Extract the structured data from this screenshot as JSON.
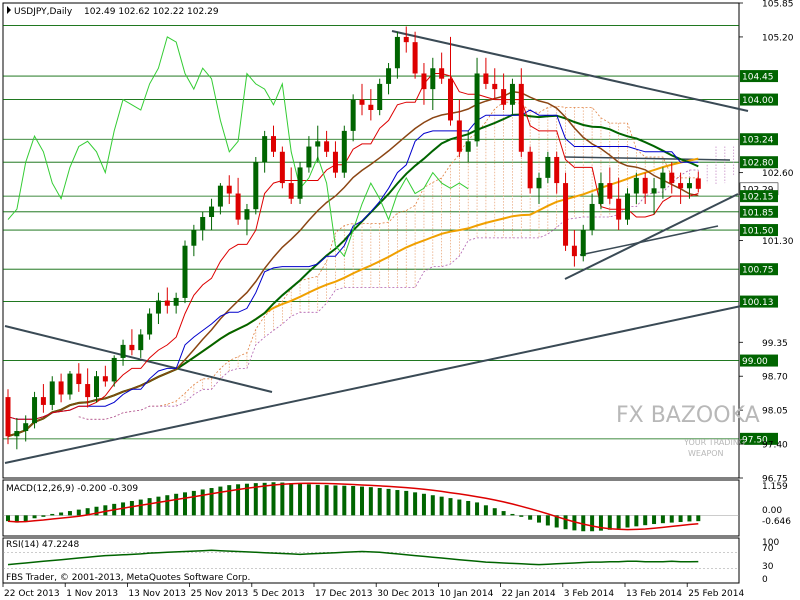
{
  "header": {
    "symbol": "USDJPY,Daily",
    "ohlc": "102.49 102.62 102.22 102.29"
  },
  "macd": {
    "label": "MACD(12,26,9) -0.200 -0.309",
    "scale": [
      "1.159",
      "0.00",
      "-0.646"
    ]
  },
  "rsi": {
    "label": "RSI(14) 47.2248",
    "scale": [
      "100",
      "70",
      "30",
      "0"
    ]
  },
  "copyright": "FBS Trader, © 2001-2013, MetaQuotes Software Corp.",
  "watermark": {
    "brand": "FX BAZOOKA",
    "tagline1": "YOUR TRADING",
    "tagline2": "WEAPON"
  },
  "colors": {
    "bull": "#006400",
    "bear": "#dd0000",
    "ma_long": "#f0a000",
    "ma_mid": "#006400",
    "ma_brown": "#8b4513",
    "tenkan": "#dd0000",
    "kijun": "#0000cc",
    "chikou": "#33cc33",
    "hlabel_bg": "#006400",
    "trend": "#3a4a55"
  },
  "chart_data": [
    {
      "type": "candlestick",
      "title": "USDJPY,Daily",
      "ylim": [
        96.75,
        105.85
      ],
      "y_ticks": [
        105.85,
        105.2,
        104.45,
        104.0,
        103.24,
        102.8,
        102.6,
        102.29,
        102.15,
        101.85,
        101.5,
        101.3,
        100.75,
        100.13,
        99.35,
        99.0,
        98.7,
        98.05,
        97.5,
        97.4,
        96.75
      ],
      "x_labels": [
        "22 Oct 2013",
        "1 Nov 2013",
        "13 Nov 2013",
        "25 Nov 2013",
        "5 Dec 2013",
        "17 Dec 2013",
        "30 Dec 2013",
        "10 Jan 2014",
        "22 Jan 2014",
        "3 Feb 2014",
        "13 Feb 2014",
        "25 Feb 2014"
      ],
      "horizontal_levels": [
        105.42,
        104.45,
        104.0,
        103.24,
        102.8,
        102.15,
        101.85,
        101.5,
        100.75,
        100.13,
        99.0,
        97.5
      ],
      "current_price": 102.29,
      "ohlc": [
        [
          98.3,
          98.45,
          97.4,
          97.55
        ],
        [
          97.55,
          97.9,
          97.3,
          97.65
        ],
        [
          97.65,
          97.95,
          97.45,
          97.8
        ],
        [
          97.8,
          98.4,
          97.7,
          98.3
        ],
        [
          98.3,
          98.55,
          98.0,
          98.15
        ],
        [
          98.15,
          98.7,
          98.05,
          98.6
        ],
        [
          98.6,
          98.75,
          98.2,
          98.35
        ],
        [
          98.35,
          98.8,
          98.25,
          98.75
        ],
        [
          98.75,
          98.95,
          98.4,
          98.55
        ],
        [
          98.55,
          98.85,
          98.1,
          98.3
        ],
        [
          98.3,
          98.8,
          98.2,
          98.7
        ],
        [
          98.7,
          98.9,
          98.5,
          98.6
        ],
        [
          98.6,
          99.1,
          98.5,
          99.05
        ],
        [
          99.05,
          99.4,
          98.9,
          99.3
        ],
        [
          99.3,
          99.6,
          99.1,
          99.2
        ],
        [
          99.2,
          99.6,
          99.05,
          99.5
        ],
        [
          99.5,
          100.0,
          99.4,
          99.9
        ],
        [
          99.9,
          100.3,
          99.7,
          100.15
        ],
        [
          100.15,
          100.4,
          99.9,
          100.05
        ],
        [
          100.05,
          100.3,
          99.9,
          100.2
        ],
        [
          100.2,
          101.3,
          100.1,
          101.2
        ],
        [
          101.2,
          101.6,
          101.0,
          101.5
        ],
        [
          101.5,
          101.85,
          101.3,
          101.75
        ],
        [
          101.75,
          102.1,
          101.5,
          101.95
        ],
        [
          101.95,
          102.4,
          101.8,
          102.35
        ],
        [
          102.35,
          102.55,
          102.0,
          102.2
        ],
        [
          102.2,
          102.5,
          101.6,
          101.7
        ],
        [
          101.7,
          102.0,
          101.4,
          101.9
        ],
        [
          101.9,
          102.9,
          101.8,
          102.8
        ],
        [
          102.8,
          103.4,
          102.6,
          103.3
        ],
        [
          103.3,
          103.5,
          102.9,
          103.0
        ],
        [
          103.0,
          103.1,
          102.3,
          102.4
        ],
        [
          102.4,
          102.7,
          102.0,
          102.1
        ],
        [
          102.1,
          102.8,
          102.0,
          102.7
        ],
        [
          102.7,
          103.3,
          102.6,
          103.1
        ],
        [
          103.1,
          103.5,
          102.8,
          103.2
        ],
        [
          103.2,
          103.4,
          102.9,
          103.0
        ],
        [
          103.0,
          103.2,
          102.5,
          102.6
        ],
        [
          102.6,
          103.5,
          102.5,
          103.4
        ],
        [
          103.4,
          104.1,
          103.2,
          104.0
        ],
        [
          104.0,
          104.3,
          103.7,
          103.9
        ],
        [
          103.9,
          104.2,
          103.6,
          103.8
        ],
        [
          103.8,
          104.4,
          103.7,
          104.3
        ],
        [
          104.3,
          104.7,
          104.1,
          104.6
        ],
        [
          104.6,
          105.3,
          104.4,
          105.2
        ],
        [
          105.2,
          105.4,
          104.9,
          105.1
        ],
        [
          105.1,
          105.3,
          104.4,
          104.5
        ],
        [
          104.5,
          104.7,
          103.9,
          104.2
        ],
        [
          104.2,
          104.8,
          103.8,
          104.6
        ],
        [
          104.6,
          104.9,
          104.3,
          104.4
        ],
        [
          104.4,
          105.2,
          103.5,
          103.6
        ],
        [
          103.6,
          104.0,
          102.9,
          103.0
        ],
        [
          103.0,
          103.4,
          102.8,
          103.2
        ],
        [
          103.2,
          104.8,
          103.1,
          104.5
        ],
        [
          104.5,
          104.8,
          104.2,
          104.3
        ],
        [
          104.3,
          104.6,
          104.0,
          104.2
        ],
        [
          104.2,
          104.5,
          103.8,
          103.9
        ],
        [
          103.9,
          104.4,
          103.7,
          104.3
        ],
        [
          104.3,
          104.6,
          102.9,
          103.0
        ],
        [
          103.0,
          103.1,
          102.2,
          102.3
        ],
        [
          102.3,
          102.6,
          102.0,
          102.5
        ],
        [
          102.5,
          103.0,
          102.4,
          102.9
        ],
        [
          102.9,
          103.0,
          102.2,
          102.4
        ],
        [
          102.4,
          102.6,
          101.1,
          101.2
        ],
        [
          101.2,
          101.5,
          100.8,
          101.0
        ],
        [
          101.0,
          101.6,
          100.9,
          101.5
        ],
        [
          101.5,
          102.2,
          101.4,
          102.0
        ],
        [
          102.0,
          102.6,
          101.9,
          102.4
        ],
        [
          102.4,
          102.7,
          102.0,
          102.1
        ],
        [
          102.1,
          102.5,
          101.5,
          101.7
        ],
        [
          101.7,
          102.3,
          101.6,
          102.2
        ],
        [
          102.2,
          102.6,
          102.0,
          102.5
        ],
        [
          102.5,
          102.6,
          102.0,
          102.2
        ],
        [
          102.2,
          102.5,
          101.8,
          102.3
        ],
        [
          102.3,
          102.7,
          102.1,
          102.6
        ],
        [
          102.6,
          102.8,
          102.2,
          102.4
        ],
        [
          102.4,
          102.6,
          102.0,
          102.3
        ],
        [
          102.3,
          102.5,
          102.1,
          102.4
        ],
        [
          102.49,
          102.62,
          102.22,
          102.29
        ]
      ]
    },
    {
      "type": "bar",
      "title": "MACD(12,26,9) -0.200 -0.309",
      "ylim": [
        -0.646,
        1.159
      ],
      "values": [
        -0.2,
        -0.25,
        -0.2,
        -0.1,
        -0.05,
        0.05,
        0.1,
        0.15,
        0.2,
        0.25,
        0.3,
        0.35,
        0.4,
        0.45,
        0.5,
        0.55,
        0.6,
        0.65,
        0.7,
        0.75,
        0.8,
        0.85,
        0.9,
        0.95,
        1.0,
        1.05,
        1.08,
        1.1,
        1.12,
        1.13,
        1.15,
        1.14,
        1.12,
        1.1,
        1.08,
        1.06,
        1.05,
        1.04,
        1.03,
        1.02,
        1.0,
        0.98,
        0.95,
        0.92,
        0.88,
        0.85,
        0.8,
        0.75,
        0.7,
        0.65,
        0.6,
        0.55,
        0.5,
        0.45,
        0.35,
        0.25,
        0.15,
        0.05,
        -0.05,
        -0.15,
        -0.25,
        -0.35,
        -0.42,
        -0.48,
        -0.52,
        -0.55,
        -0.55,
        -0.53,
        -0.5,
        -0.46,
        -0.42,
        -0.38,
        -0.34,
        -0.3,
        -0.27,
        -0.25,
        -0.23,
        -0.21,
        -0.2
      ]
    },
    {
      "type": "line",
      "title": "RSI(14) 47.2248",
      "ylim": [
        0,
        100
      ],
      "y_ticks": [
        100,
        70,
        30,
        0
      ],
      "values": [
        40,
        42,
        44,
        46,
        48,
        50,
        52,
        54,
        56,
        58,
        60,
        62,
        63,
        64,
        65,
        66,
        68,
        69,
        70,
        71,
        72,
        73,
        74,
        75,
        74,
        73,
        72,
        71,
        70,
        69,
        68,
        67,
        66,
        65,
        66,
        67,
        68,
        69,
        70,
        71,
        72,
        71,
        70,
        68,
        66,
        64,
        62,
        60,
        58,
        56,
        54,
        52,
        50,
        48,
        46,
        45,
        44,
        43,
        42,
        41,
        40,
        41,
        42,
        43,
        44,
        45,
        46,
        46,
        47,
        47,
        48,
        48,
        47,
        47,
        47,
        48,
        47,
        47,
        47.2
      ]
    }
  ]
}
